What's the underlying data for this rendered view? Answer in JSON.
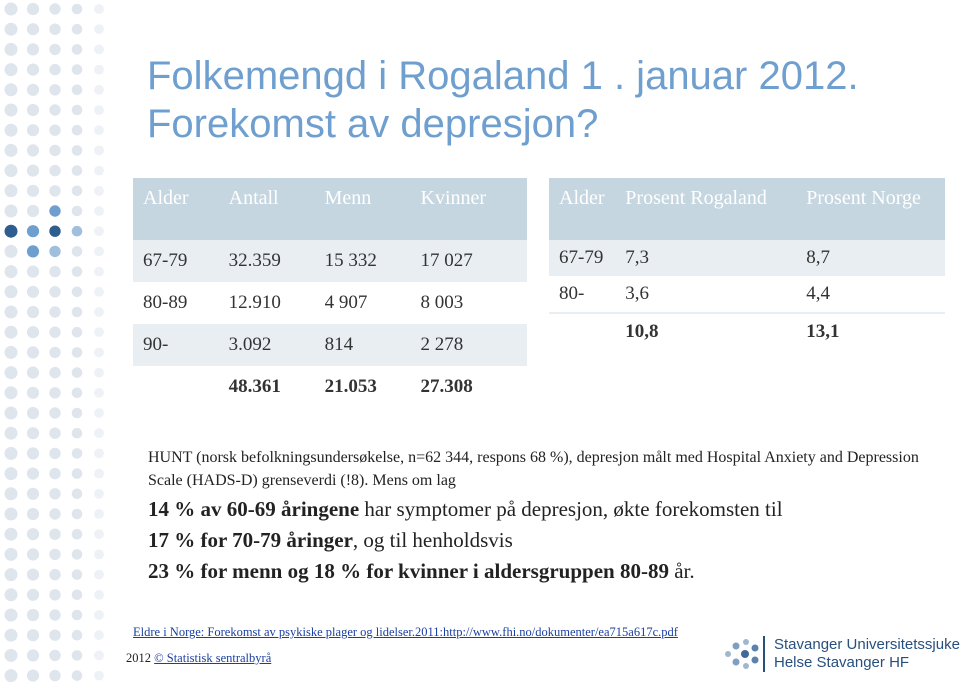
{
  "title": "Folkemengd i Rogaland 1 . januar 2012. Forekomst av depresjon?",
  "table_left": {
    "header": [
      "Alder",
      "Antall",
      "Menn",
      "Kvinner"
    ],
    "rows": [
      [
        "67-79",
        "32.359",
        "15 332",
        "17 027"
      ],
      [
        "80-89",
        "12.910",
        "4 907",
        "8 003"
      ],
      [
        "90-",
        "3.092",
        "814",
        "2 278"
      ]
    ],
    "total": [
      "48.361",
      "21.053",
      "27.308"
    ]
  },
  "table_right": {
    "header": [
      "Alder",
      "Prosent Rogaland",
      "Prosent Norge"
    ],
    "rows": [
      [
        "67-79",
        "7,3",
        "8,7"
      ],
      [
        "80-",
        "3,6",
        "4,4"
      ]
    ],
    "total": [
      "10,8",
      "13,1"
    ]
  },
  "text": {
    "intro": "HUNT (norsk befolkningsundersøkelse, n=62 344, respons 68 %), depresjon målt med Hospital Anxiety and Depression Scale (HADS-D) grenseverdi (!8). Mens om lag",
    "b1": "14 % av 60-69 åringene",
    "t1": " har symptomer på depresjon, økte forekomsten til",
    "b2": "17 % for 70-79 åringer",
    "t2": ", og til henholdsvis",
    "b3": "23 % for menn og 18 % for kvinner i aldersgruppen 80-89",
    "t3": " år."
  },
  "footer": {
    "source": "Eldre i Norge: Forekomst av psykiske plager og lidelser.2011:http://www.fhi.no/dokumenter/ea715a617c.pdf",
    "year": "2012",
    "copyright": "© Statistisk sentralbyrå"
  },
  "logo": {
    "line1": "Stavanger Universitetssjukehus",
    "line2": "Helse Stavanger HF"
  }
}
